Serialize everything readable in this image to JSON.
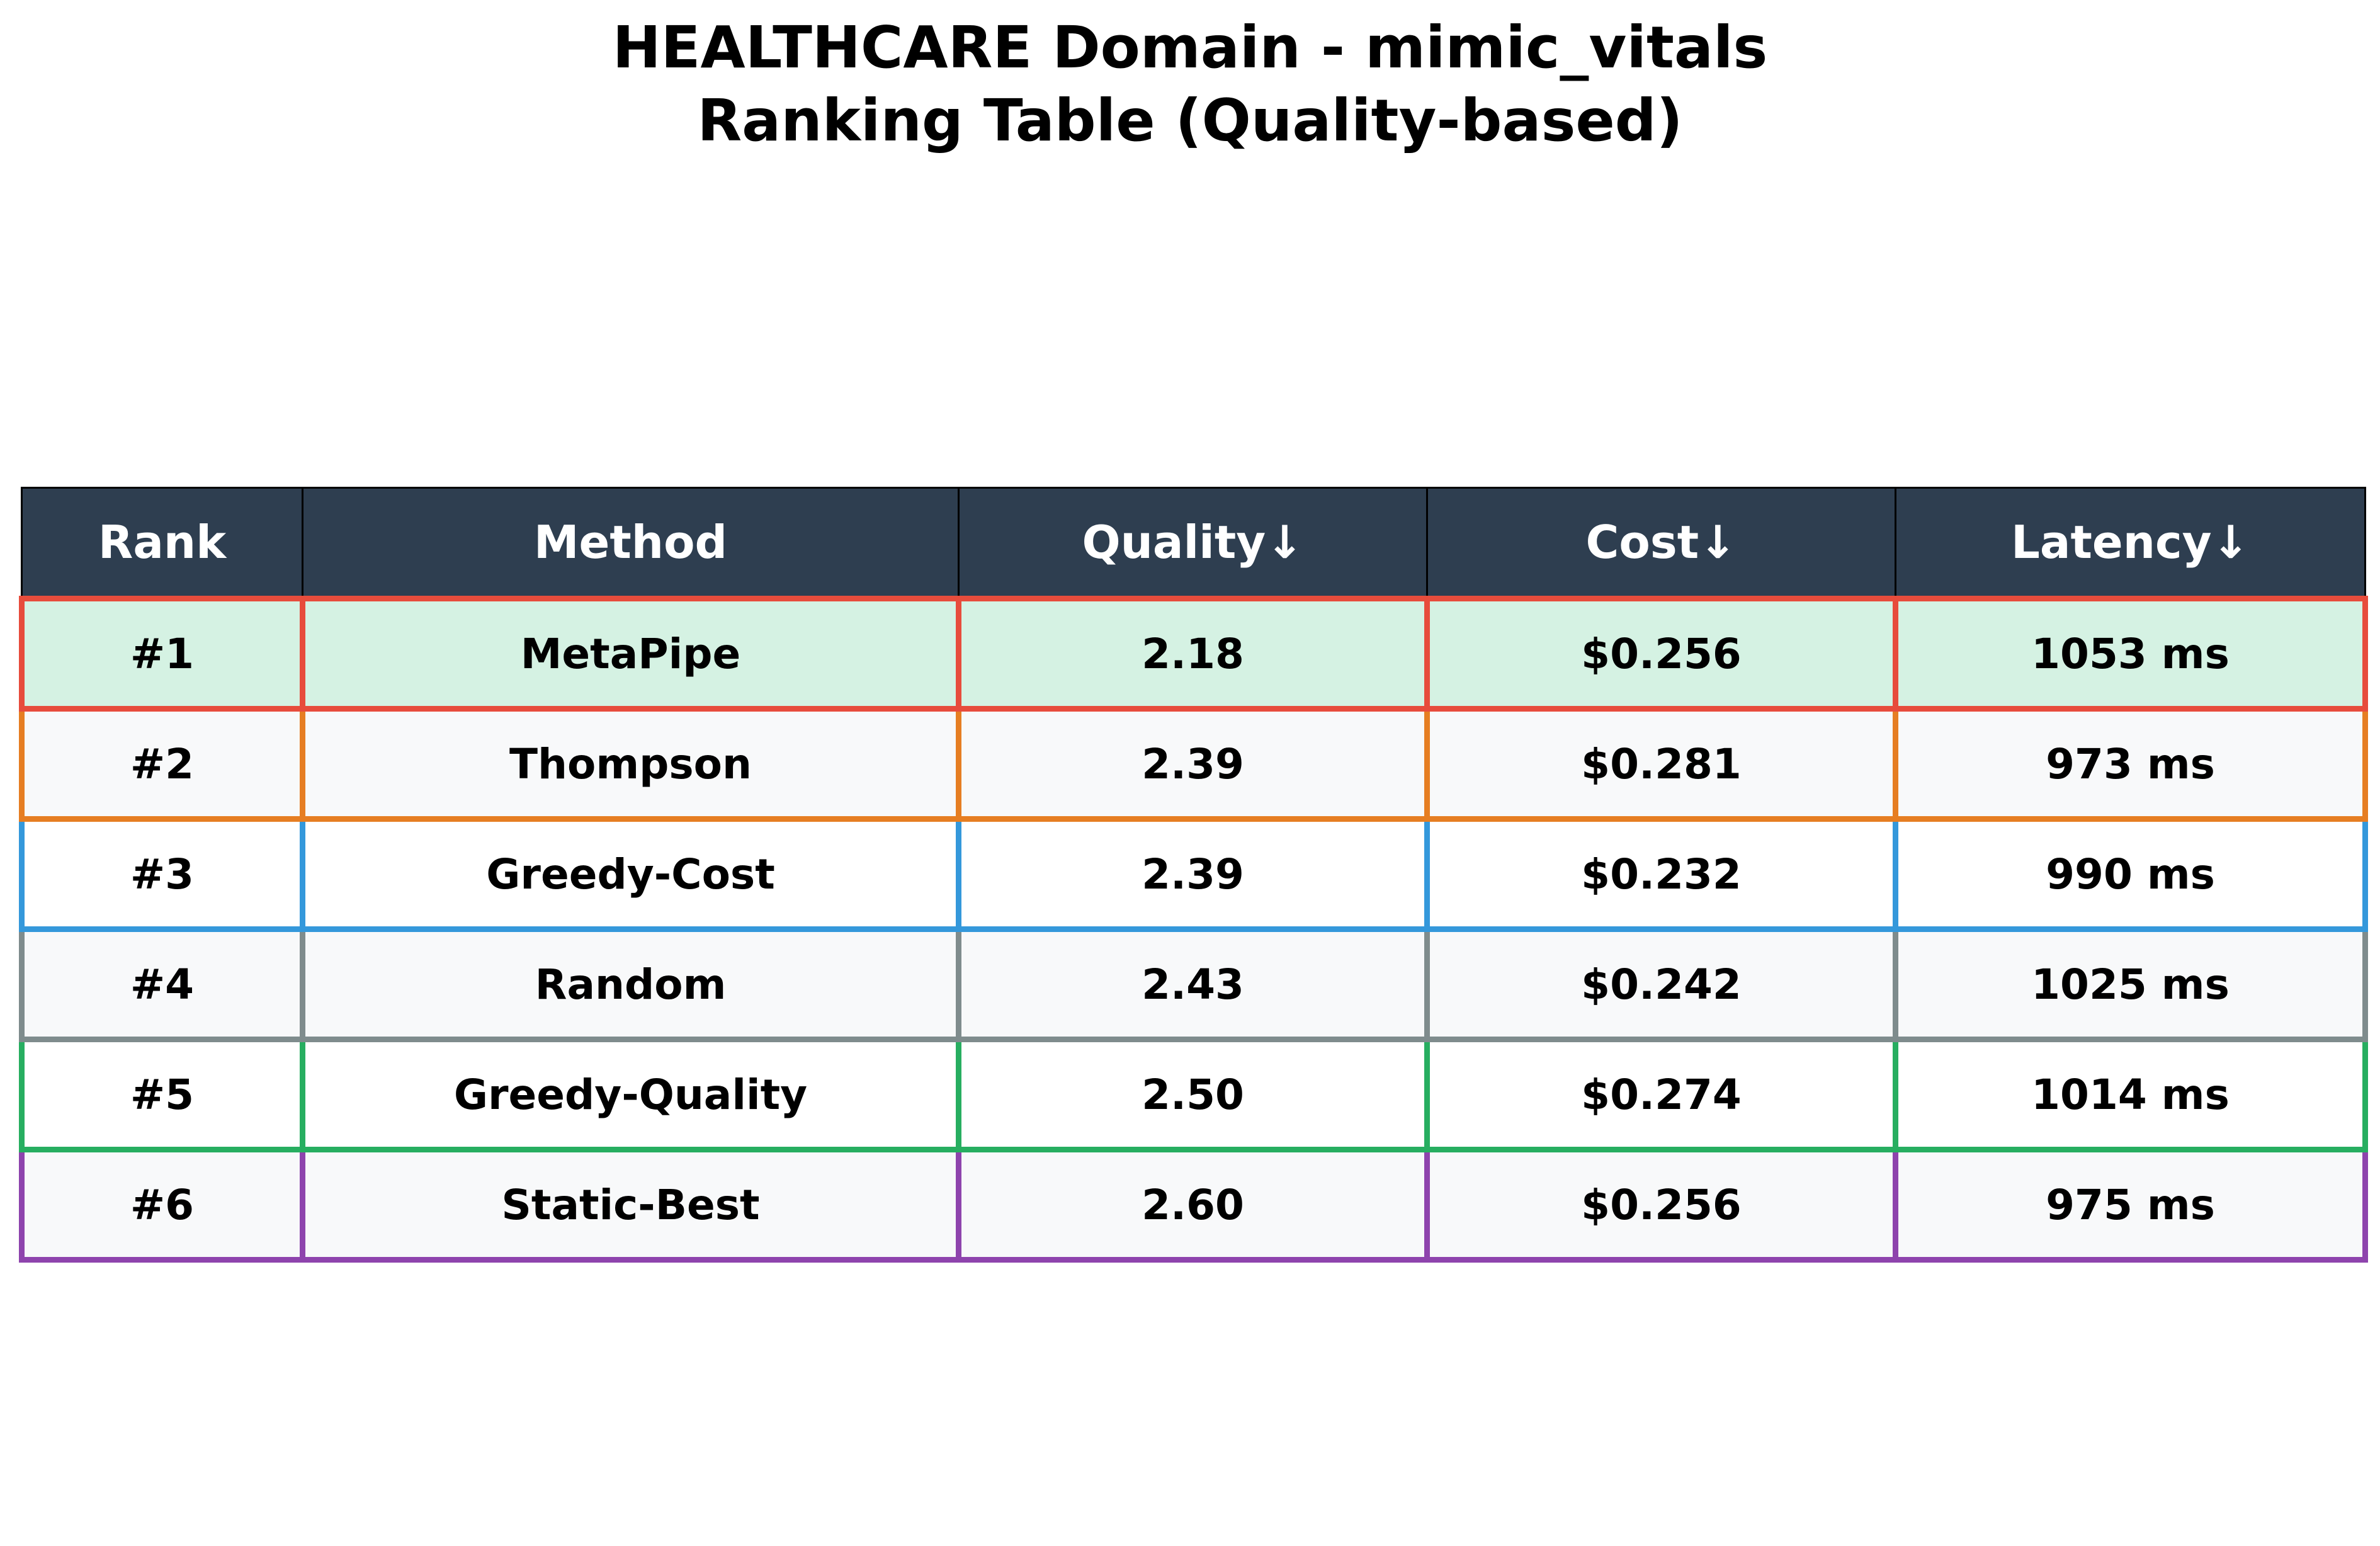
{
  "chart_data": {
    "type": "table",
    "title_lines": [
      "HEALTHCARE Domain - mimic_vitals",
      "Ranking Table (Quality-based)"
    ],
    "columns": [
      "Rank",
      "Method",
      "Quality↓",
      "Cost↓",
      "Latency↓"
    ],
    "rows": [
      {
        "rank": "#1",
        "method": "MetaPipe",
        "quality": "2.18",
        "cost": "$0.256",
        "latency": "1053 ms",
        "border": "#e74c3c",
        "fill": "#d5f2e3"
      },
      {
        "rank": "#2",
        "method": "Thompson",
        "quality": "2.39",
        "cost": "$0.281",
        "latency": "973 ms",
        "border": "#e67e22",
        "fill": "#f8f9fa"
      },
      {
        "rank": "#3",
        "method": "Greedy-Cost",
        "quality": "2.39",
        "cost": "$0.232",
        "latency": "990 ms",
        "border": "#3498db",
        "fill": "#ffffff"
      },
      {
        "rank": "#4",
        "method": "Random",
        "quality": "2.43",
        "cost": "$0.242",
        "latency": "1025 ms",
        "border": "#7f8c8d",
        "fill": "#f8f9fa"
      },
      {
        "rank": "#5",
        "method": "Greedy-Quality",
        "quality": "2.50",
        "cost": "$0.274",
        "latency": "1014 ms",
        "border": "#27ae60",
        "fill": "#ffffff"
      },
      {
        "rank": "#6",
        "method": "Static-Best",
        "quality": "2.60",
        "cost": "$0.256",
        "latency": "975 ms",
        "border": "#8e44ad",
        "fill": "#f8f9fa"
      }
    ],
    "header_fill": "#2e3e50",
    "header_text_color": "#ffffff"
  }
}
